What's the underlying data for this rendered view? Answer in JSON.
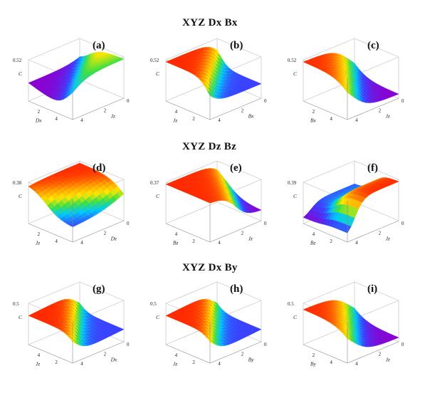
{
  "figure": {
    "sections": [
      {
        "title": "XYZ Dx Bx",
        "panels": [
          {
            "label": "(a)",
            "zmax": "0.52",
            "left_axis": "D_x",
            "right_axis": "J_z",
            "left_ticks": [
              "4",
              "2"
            ],
            "right_ticks": [
              "0",
              "2",
              "4"
            ],
            "surface": "a",
            "colors": [
              "#ff2a00",
              "#ff9a00",
              "#ffe600",
              "#40e040",
              "#00c8ff",
              "#3a40ff",
              "#8a00d0"
            ]
          },
          {
            "label": "(b)",
            "zmax": "0.52",
            "left_axis": "J_z",
            "right_axis": "B_x",
            "left_ticks": [
              "2",
              "4"
            ],
            "right_ticks": [
              "0",
              "2",
              "4"
            ],
            "surface": "b",
            "colors": [
              "#ff2a00",
              "#ff9a00",
              "#ffe600",
              "#40e040",
              "#00c8ff",
              "#3a40ff"
            ]
          },
          {
            "label": "(c)",
            "zmax": "0.52",
            "left_axis": "B_x",
            "right_axis": "J_z",
            "left_ticks": [
              "4",
              "2"
            ],
            "right_ticks": [
              "0",
              "2",
              "4"
            ],
            "surface": "c",
            "colors": [
              "#ff2a00",
              "#ff9a00",
              "#ffe600",
              "#40e040",
              "#00c8ff",
              "#3a40ff",
              "#8a00d0"
            ]
          }
        ]
      },
      {
        "title": "XYZ Dz Bz",
        "panels": [
          {
            "label": "(d)",
            "zmax": "0.38",
            "left_axis": "J_z",
            "right_axis": "D_z",
            "left_ticks": [
              "4",
              "2"
            ],
            "right_ticks": [
              "0",
              "2",
              "4"
            ],
            "surface": "d",
            "colors": [
              "#ff2a00",
              "#ff9a00",
              "#ffe600",
              "#40e040",
              "#00c8ff",
              "#3a40ff"
            ]
          },
          {
            "label": "(e)",
            "zmax": "0.37",
            "left_axis": "B_z",
            "right_axis": "J_z",
            "left_ticks": [
              "2",
              "4"
            ],
            "right_ticks": [
              "0",
              "2",
              "4"
            ],
            "surface": "e",
            "colors": [
              "#ff2a00",
              "#ff9a00",
              "#ffe600",
              "#40e040",
              "#00c8ff",
              "#3a40ff",
              "#8a00d0"
            ]
          },
          {
            "label": "(f)",
            "zmax": "0.39",
            "left_axis": "B_z",
            "right_axis": "J_z",
            "left_ticks": [
              "2",
              "4"
            ],
            "right_ticks": [
              "0",
              "2",
              "4"
            ],
            "surface": "f",
            "colors": [
              "#ff2a00",
              "#ff9a00",
              "#ffe600",
              "#40e040",
              "#00c8ff",
              "#3a40ff",
              "#8a00d0"
            ]
          }
        ]
      },
      {
        "title": "XYZ Dx By",
        "panels": [
          {
            "label": "(g)",
            "zmax": "0.5",
            "left_axis": "J_z",
            "right_axis": "D_x",
            "left_ticks": [
              "2",
              "4"
            ],
            "right_ticks": [
              "0",
              "2",
              "4"
            ],
            "surface": "g",
            "colors": [
              "#ff2a00",
              "#ff9a00",
              "#ffe600",
              "#40e040",
              "#00c8ff",
              "#3a40ff"
            ]
          },
          {
            "label": "(h)",
            "zmax": "0.5",
            "left_axis": "J_z",
            "right_axis": "B_y",
            "left_ticks": [
              "2",
              "4"
            ],
            "right_ticks": [
              "0",
              "2",
              "4"
            ],
            "surface": "h",
            "colors": [
              "#ff2a00",
              "#ff9a00",
              "#ffe600",
              "#40e040",
              "#00c8ff",
              "#3a40ff"
            ]
          },
          {
            "label": "(i)",
            "zmax": "0.5",
            "left_axis": "B_y",
            "right_axis": "J_z",
            "left_ticks": [
              "4",
              "2"
            ],
            "right_ticks": [
              "0",
              "2",
              "4"
            ],
            "surface": "i",
            "colors": [
              "#ff2a00",
              "#ff9a00",
              "#ffe600",
              "#40e040",
              "#00c8ff",
              "#3a40ff",
              "#8a00d0"
            ]
          }
        ]
      }
    ],
    "z_axis_label": "C"
  }
}
